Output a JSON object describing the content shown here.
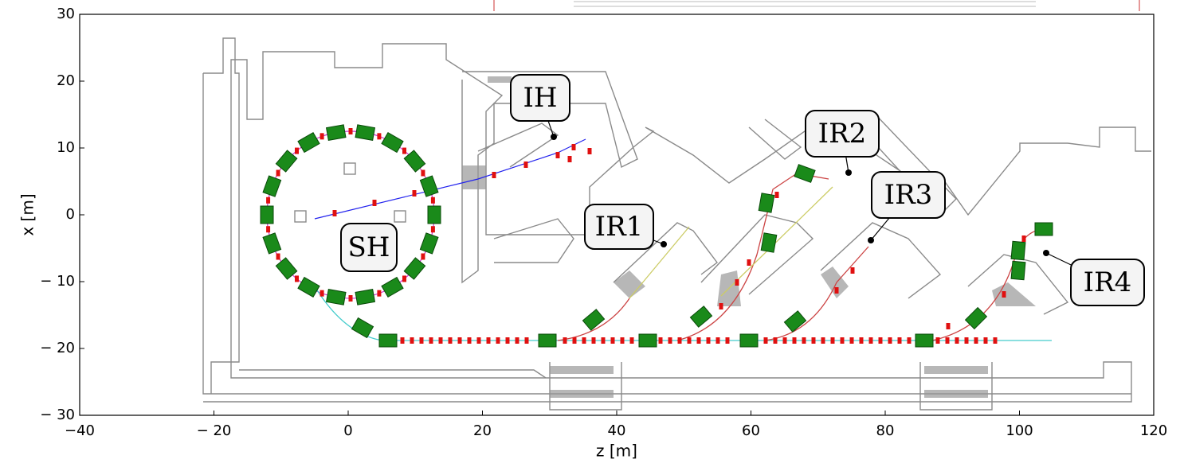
{
  "chart_data": {
    "type": "layout",
    "x_label": "z [m]",
    "y_label": "x [m]",
    "xlim": [
      -40,
      120
    ],
    "ylim": [
      -30,
      30
    ],
    "xticks": [
      {
        "value": -40,
        "label": "−40"
      },
      {
        "value": -20,
        "label": "− 20"
      },
      0,
      20,
      40,
      60,
      80,
      100,
      120
    ],
    "yticks": [
      {
        "value": -30,
        "label": "− 30"
      },
      {
        "value": -20,
        "label": "− 20"
      },
      {
        "value": -10,
        "label": "− 10"
      },
      0,
      10,
      20,
      30
    ],
    "annotations": [
      "SH",
      "IH",
      "IR1",
      "IR2",
      "IR3",
      "IR4"
    ]
  }
}
